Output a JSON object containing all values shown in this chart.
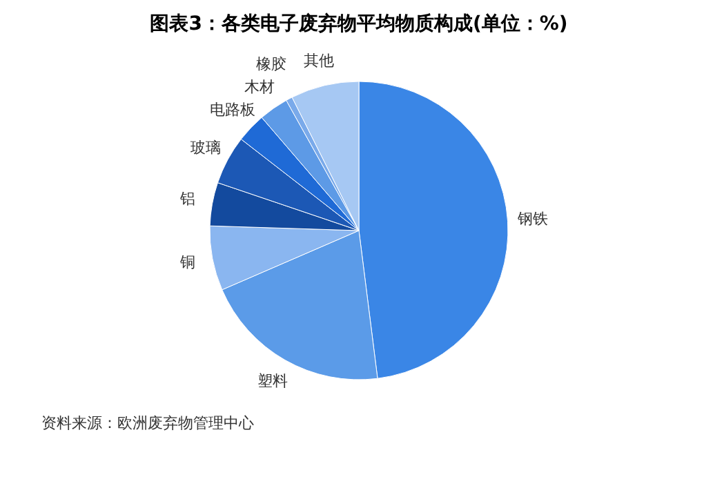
{
  "chart_data": {
    "type": "pie",
    "title": "图表3：各类电子废弃物平均物质构成(单位：%)",
    "categories": [
      "钢铁",
      "塑料",
      "铜",
      "铝",
      "玻璃",
      "电路板",
      "木材",
      "橡胶",
      "其他"
    ],
    "values": [
      48,
      20.5,
      7,
      4.7,
      5.3,
      3.2,
      3.2,
      0.7,
      7.4
    ],
    "colors": [
      "#3a86e6",
      "#5b9be8",
      "#8ab6f0",
      "#134a9e",
      "#1c58b5",
      "#1f6ad6",
      "#5d9ae6",
      "#7aaaea",
      "#a6c8f3"
    ],
    "annotations": [
      "资料来源：欧洲废弃物管理中心"
    ],
    "legend": false
  }
}
